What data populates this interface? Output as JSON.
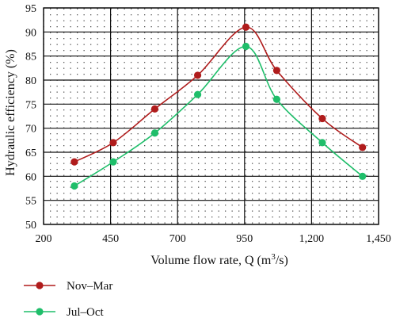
{
  "chart_data": {
    "type": "line",
    "title": "",
    "xlabel": "Volume flow rate, Q (m",
    "xlabel_sup": "3",
    "xlabel_tail": "/s)",
    "ylabel": "Hydraulic efficiency (%)",
    "xlim": [
      200,
      1450
    ],
    "ylim": [
      50,
      95
    ],
    "x_ticks": [
      200,
      450,
      700,
      950,
      1200,
      1450
    ],
    "x_tick_labels": [
      "200",
      "450",
      "700",
      "950",
      "1,200",
      "1,450"
    ],
    "y_ticks": [
      50,
      55,
      60,
      65,
      70,
      75,
      80,
      85,
      90,
      95
    ],
    "y_tick_labels": [
      "50",
      "55",
      "60",
      "65",
      "70",
      "75",
      "80",
      "85",
      "90",
      "95"
    ],
    "grid": true,
    "legend_position": "bottom-left",
    "series": [
      {
        "name": "Nov–Mar",
        "color": "#b01c1c",
        "points": [
          [
            315,
            63
          ],
          [
            460,
            67
          ],
          [
            615,
            74
          ],
          [
            775,
            81
          ],
          [
            955,
            91
          ],
          [
            1070,
            82
          ],
          [
            1240,
            72
          ],
          [
            1390,
            66
          ]
        ]
      },
      {
        "name": "Jul–Oct",
        "color": "#1fbe6a",
        "points": [
          [
            315,
            58
          ],
          [
            460,
            63
          ],
          [
            615,
            69
          ],
          [
            775,
            77
          ],
          [
            955,
            87
          ],
          [
            1070,
            76
          ],
          [
            1240,
            67
          ],
          [
            1390,
            60
          ]
        ]
      }
    ]
  }
}
